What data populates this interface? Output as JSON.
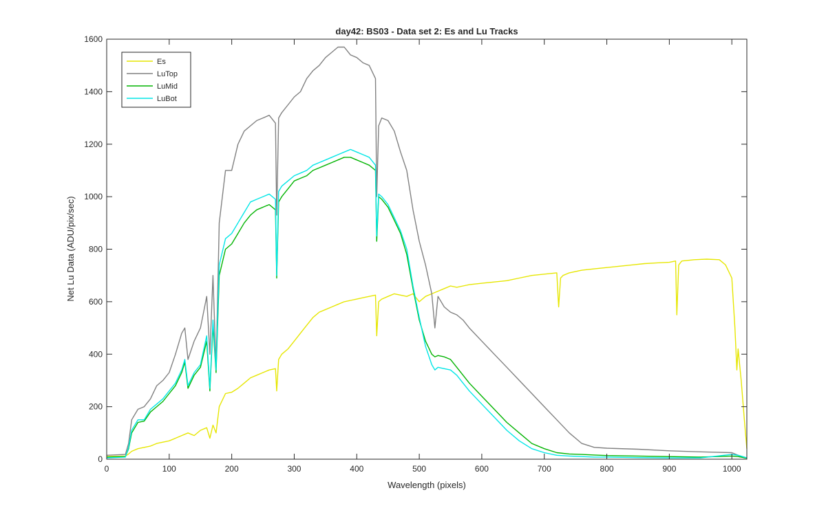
{
  "chart_data": {
    "type": "line",
    "title": "day42: BS03 - Data set 2: Es and Lu Tracks",
    "xlabel": "Wavelength (pixels)",
    "ylabel": "Net Lu Data (ADU/pix/sec)",
    "xlim": [
      0,
      1024
    ],
    "ylim": [
      0,
      1600
    ],
    "xticks": [
      0,
      100,
      200,
      300,
      400,
      500,
      600,
      700,
      800,
      900,
      1000
    ],
    "yticks": [
      0,
      200,
      400,
      600,
      800,
      1000,
      1200,
      1400,
      1600
    ],
    "grid": false,
    "legend_position": "top-left",
    "series": [
      {
        "name": "Es",
        "color": "#e6e600",
        "x": [
          0,
          30,
          35,
          40,
          50,
          60,
          70,
          80,
          90,
          100,
          110,
          120,
          130,
          140,
          150,
          160,
          165,
          170,
          175,
          180,
          190,
          200,
          210,
          220,
          230,
          240,
          250,
          260,
          270,
          272,
          275,
          280,
          290,
          300,
          310,
          320,
          330,
          340,
          350,
          360,
          370,
          380,
          390,
          400,
          410,
          420,
          430,
          432,
          435,
          440,
          450,
          460,
          470,
          480,
          490,
          500,
          510,
          520,
          530,
          540,
          550,
          560,
          570,
          580,
          600,
          620,
          640,
          660,
          680,
          700,
          720,
          723,
          726,
          730,
          740,
          760,
          780,
          800,
          820,
          840,
          860,
          880,
          900,
          910,
          912,
          915,
          920,
          940,
          960,
          980,
          990,
          1000,
          1005,
          1008,
          1010,
          1015,
          1020,
          1024
        ],
        "y": [
          10,
          12,
          20,
          30,
          40,
          45,
          50,
          60,
          65,
          70,
          80,
          90,
          100,
          90,
          110,
          120,
          80,
          130,
          100,
          200,
          250,
          255,
          270,
          290,
          310,
          320,
          330,
          340,
          345,
          260,
          380,
          400,
          420,
          450,
          480,
          510,
          540,
          560,
          570,
          580,
          590,
          600,
          605,
          610,
          615,
          620,
          625,
          470,
          600,
          610,
          620,
          630,
          625,
          620,
          630,
          600,
          620,
          630,
          640,
          650,
          660,
          655,
          660,
          665,
          670,
          675,
          680,
          690,
          700,
          705,
          710,
          580,
          690,
          700,
          710,
          720,
          725,
          730,
          735,
          740,
          745,
          748,
          750,
          755,
          550,
          740,
          755,
          760,
          762,
          760,
          740,
          690,
          500,
          340,
          420,
          300,
          150,
          40
        ]
      },
      {
        "name": "LuTop",
        "color": "#808080",
        "x": [
          0,
          30,
          35,
          40,
          50,
          60,
          70,
          80,
          90,
          100,
          110,
          120,
          125,
          130,
          140,
          150,
          160,
          165,
          170,
          175,
          180,
          190,
          200,
          210,
          220,
          230,
          240,
          250,
          260,
          270,
          272,
          275,
          280,
          290,
          300,
          310,
          320,
          330,
          340,
          350,
          360,
          370,
          380,
          390,
          400,
          410,
          420,
          430,
          432,
          435,
          440,
          450,
          460,
          470,
          480,
          490,
          500,
          510,
          520,
          525,
          530,
          540,
          550,
          560,
          570,
          580,
          600,
          620,
          640,
          660,
          680,
          700,
          720,
          740,
          760,
          780,
          800,
          850,
          900,
          950,
          1000,
          1010,
          1024
        ],
        "y": [
          15,
          18,
          60,
          150,
          190,
          200,
          230,
          280,
          300,
          330,
          400,
          480,
          500,
          380,
          450,
          500,
          620,
          400,
          700,
          350,
          900,
          1100,
          1100,
          1200,
          1250,
          1270,
          1290,
          1300,
          1310,
          1280,
          930,
          1300,
          1320,
          1350,
          1380,
          1400,
          1450,
          1480,
          1500,
          1530,
          1550,
          1570,
          1570,
          1540,
          1530,
          1510,
          1500,
          1450,
          1000,
          1270,
          1300,
          1290,
          1250,
          1170,
          1100,
          950,
          830,
          740,
          630,
          500,
          620,
          580,
          560,
          550,
          530,
          500,
          450,
          400,
          350,
          300,
          250,
          200,
          150,
          100,
          60,
          45,
          42,
          38,
          32,
          28,
          25,
          15,
          5
        ]
      },
      {
        "name": "LuMid",
        "color": "#00b300",
        "x": [
          0,
          30,
          35,
          40,
          50,
          60,
          70,
          80,
          90,
          100,
          110,
          120,
          125,
          130,
          140,
          150,
          160,
          165,
          170,
          175,
          180,
          190,
          200,
          210,
          220,
          230,
          240,
          250,
          260,
          270,
          272,
          275,
          280,
          290,
          300,
          310,
          320,
          330,
          340,
          350,
          360,
          370,
          380,
          390,
          400,
          410,
          420,
          430,
          432,
          435,
          440,
          450,
          460,
          470,
          480,
          490,
          500,
          510,
          520,
          525,
          530,
          540,
          550,
          560,
          570,
          580,
          600,
          620,
          640,
          660,
          680,
          700,
          720,
          740,
          760,
          780,
          800,
          850,
          900,
          950,
          1000,
          1010,
          1024
        ],
        "y": [
          8,
          10,
          40,
          100,
          140,
          145,
          180,
          200,
          220,
          250,
          280,
          330,
          370,
          270,
          320,
          350,
          450,
          260,
          510,
          330,
          700,
          800,
          820,
          860,
          900,
          930,
          950,
          960,
          970,
          950,
          690,
          980,
          1000,
          1030,
          1060,
          1070,
          1080,
          1100,
          1110,
          1120,
          1130,
          1140,
          1150,
          1150,
          1140,
          1130,
          1120,
          1100,
          830,
          1000,
          990,
          960,
          910,
          860,
          780,
          650,
          530,
          450,
          400,
          390,
          395,
          390,
          380,
          350,
          320,
          290,
          240,
          190,
          140,
          100,
          60,
          40,
          25,
          20,
          18,
          16,
          14,
          12,
          10,
          8,
          12,
          10,
          4
        ]
      },
      {
        "name": "LuBot",
        "color": "#00e6e6",
        "x": [
          0,
          30,
          35,
          40,
          50,
          60,
          70,
          80,
          90,
          100,
          110,
          120,
          125,
          130,
          140,
          150,
          160,
          165,
          170,
          175,
          180,
          190,
          200,
          210,
          220,
          230,
          240,
          250,
          260,
          270,
          272,
          275,
          280,
          290,
          300,
          310,
          320,
          330,
          340,
          350,
          360,
          370,
          380,
          390,
          400,
          410,
          420,
          430,
          432,
          435,
          440,
          450,
          460,
          470,
          480,
          490,
          500,
          510,
          520,
          525,
          530,
          540,
          550,
          560,
          570,
          580,
          600,
          620,
          640,
          660,
          680,
          700,
          720,
          740,
          760,
          780,
          800,
          850,
          900,
          950,
          1000,
          1010,
          1024
        ],
        "y": [
          5,
          8,
          45,
          110,
          150,
          150,
          190,
          210,
          230,
          260,
          290,
          340,
          380,
          280,
          330,
          360,
          470,
          270,
          530,
          340,
          740,
          840,
          860,
          900,
          940,
          980,
          990,
          1000,
          1010,
          990,
          700,
          1020,
          1040,
          1060,
          1080,
          1090,
          1100,
          1120,
          1130,
          1140,
          1150,
          1160,
          1170,
          1180,
          1170,
          1160,
          1150,
          1120,
          850,
          1010,
          1000,
          970,
          920,
          870,
          800,
          660,
          540,
          430,
          360,
          340,
          350,
          345,
          340,
          320,
          290,
          260,
          210,
          160,
          110,
          70,
          40,
          25,
          15,
          12,
          10,
          8,
          8,
          6,
          5,
          5,
          18,
          15,
          5
        ]
      }
    ]
  }
}
